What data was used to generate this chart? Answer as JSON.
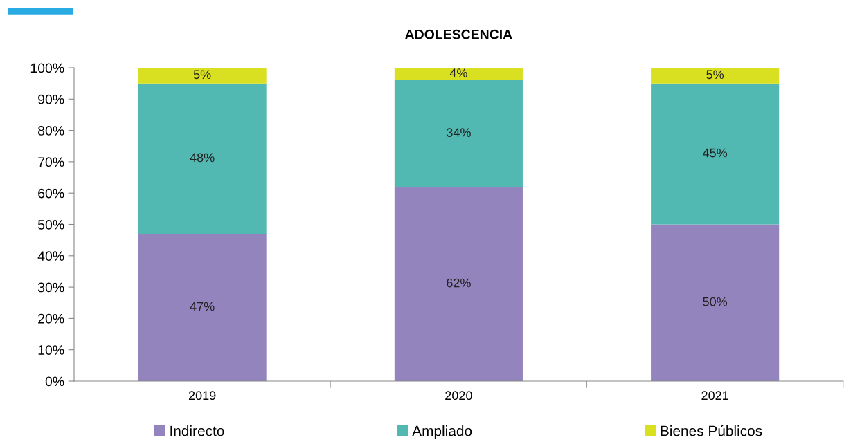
{
  "chart_data": {
    "type": "bar",
    "title": "ADOLESCENCIA",
    "categories": [
      "2019",
      "2020",
      "2021"
    ],
    "stacked": true,
    "series": [
      {
        "name": "Indirecto",
        "color": "#9384bd",
        "values": [
          47,
          62,
          50
        ]
      },
      {
        "name": "Ampliado",
        "color": "#52b9b2",
        "values": [
          48,
          34,
          45
        ]
      },
      {
        "name": "Bienes Públicos",
        "color": "#d9e021",
        "values": [
          5,
          4,
          5
        ]
      }
    ],
    "value_labels": [
      [
        "47%",
        "62%",
        "50%"
      ],
      [
        "48%",
        "34%",
        "45%"
      ],
      [
        "5%",
        "4%",
        "5%"
      ]
    ],
    "ylim": [
      0,
      100
    ],
    "yticks": [
      {
        "value": 0,
        "label": "0%"
      },
      {
        "value": 10,
        "label": "10%"
      },
      {
        "value": 20,
        "label": "20%"
      },
      {
        "value": 30,
        "label": "30%"
      },
      {
        "value": 40,
        "label": "40%"
      },
      {
        "value": 50,
        "label": "50%"
      },
      {
        "value": 60,
        "label": "60%"
      },
      {
        "value": 70,
        "label": "70%"
      },
      {
        "value": 80,
        "label": "80%"
      },
      {
        "value": 90,
        "label": "90%"
      },
      {
        "value": 100,
        "label": "100%"
      }
    ],
    "grid": false,
    "legend": "bottom"
  }
}
